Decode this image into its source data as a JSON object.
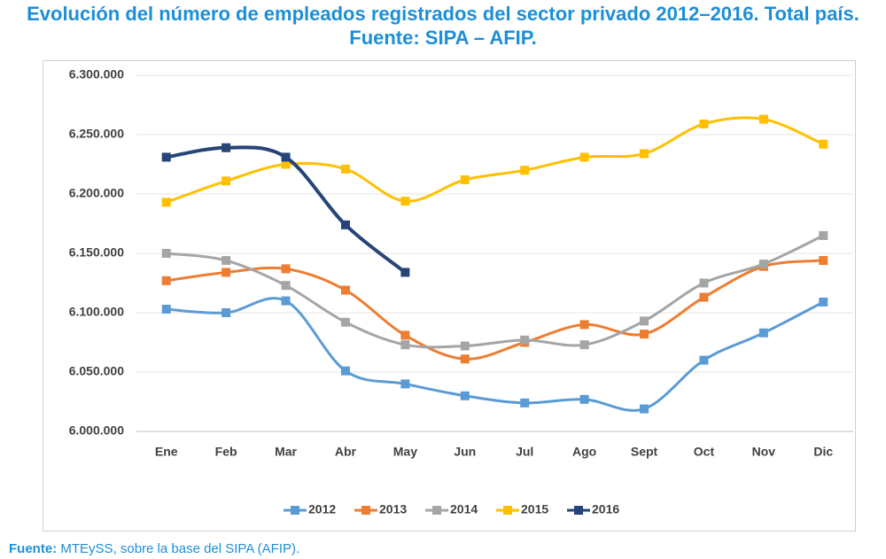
{
  "chart_data": {
    "type": "line",
    "title": "Evolución del número de empleados registrados del sector privado 2012–2016. Total país. Fuente: SIPA – AFIP.",
    "categories": [
      "Ene",
      "Feb",
      "Mar",
      "Abr",
      "May",
      "Jun",
      "Jul",
      "Ago",
      "Sept",
      "Oct",
      "Nov",
      "Dic"
    ],
    "series": [
      {
        "name": "2012",
        "color": "#5b9bd5",
        "values": [
          6103000,
          6100000,
          6110000,
          6051000,
          6040000,
          6030000,
          6024000,
          6027000,
          6019000,
          6060000,
          6083000,
          6109000
        ]
      },
      {
        "name": "2013",
        "color": "#ed7d31",
        "values": [
          6127000,
          6134000,
          6137000,
          6119000,
          6081000,
          6061000,
          6075000,
          6090000,
          6082000,
          6113000,
          6139000,
          6144000
        ]
      },
      {
        "name": "2014",
        "color": "#a5a5a5",
        "values": [
          6150000,
          6144000,
          6123000,
          6092000,
          6073000,
          6072000,
          6077000,
          6073000,
          6093000,
          6125000,
          6141000,
          6165000
        ]
      },
      {
        "name": "2015",
        "color": "#ffc000",
        "values": [
          6193000,
          6211000,
          6225000,
          6221000,
          6194000,
          6212000,
          6220000,
          6231000,
          6234000,
          6259000,
          6263000,
          6242000
        ]
      },
      {
        "name": "2016",
        "color": "#264478",
        "values": [
          6231000,
          6239000,
          6231000,
          6174000,
          6134000,
          null,
          null,
          null,
          null,
          null,
          null,
          null
        ]
      }
    ],
    "ylim": [
      6000000,
      6300000
    ],
    "yticks": [
      {
        "value": 6000000,
        "label": "6.000.000"
      },
      {
        "value": 6050000,
        "label": "6.050.000"
      },
      {
        "value": 6100000,
        "label": "6.100.000"
      },
      {
        "value": 6150000,
        "label": "6.150.000"
      },
      {
        "value": 6200000,
        "label": "6.200.000"
      },
      {
        "value": 6250000,
        "label": "6.250.000"
      },
      {
        "value": 6300000,
        "label": "6.300.000"
      }
    ],
    "grid": true,
    "legend": "bottom"
  },
  "source": {
    "label": "Fuente:",
    "text": "MTEySS, sobre la base del SIPA (AFIP)."
  }
}
